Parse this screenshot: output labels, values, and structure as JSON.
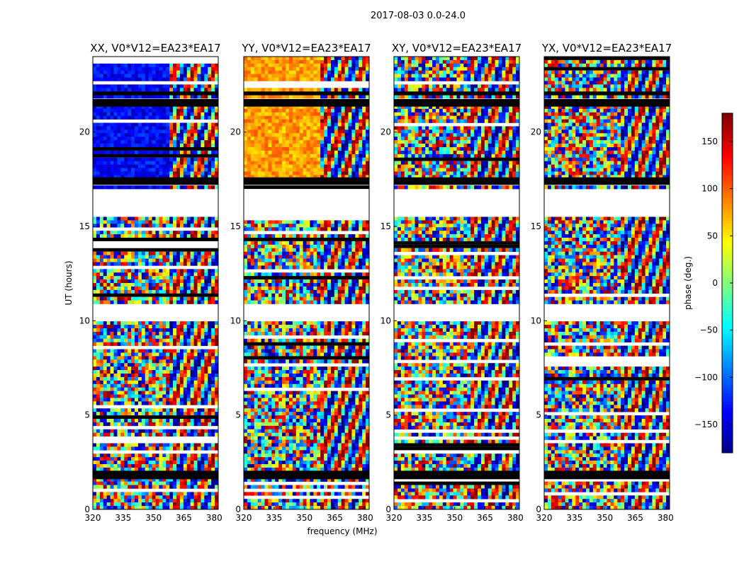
{
  "figure": {
    "suptitle": "2017-08-03 0.0-24.0"
  },
  "chart_data": {
    "type": "heatmap",
    "xlabel": "frequency (MHz)",
    "ylabel": "UT (hours)",
    "xlim": [
      320,
      382
    ],
    "ylim": [
      0,
      24
    ],
    "xticks": [
      320,
      335,
      350,
      365,
      380
    ],
    "yticks": [
      0,
      5,
      10,
      15,
      20
    ],
    "panels": [
      {
        "title": "XX, V0*V12=EA23*EA17",
        "pattern": "xx"
      },
      {
        "title": "YY, V0*V12=EA23*EA17",
        "pattern": "yy"
      },
      {
        "title": "XY, V0*V12=EA23*EA17",
        "pattern": "xy"
      },
      {
        "title": "YX, V0*V12=EA23*EA17",
        "pattern": "yx"
      }
    ],
    "flagged_ranges_hours": [
      [
        22.15,
        21.95
      ],
      [
        21.75,
        21.35
      ],
      [
        17.6,
        17.2
      ],
      [
        17.05,
        15.55
      ],
      [
        10.85,
        9.95
      ],
      [
        2.05,
        1.6
      ]
    ],
    "colorbar": {
      "label": "phase (deg.)",
      "range": [
        -180,
        180
      ],
      "ticks": [
        -150,
        -100,
        -50,
        0,
        50,
        100,
        150
      ],
      "colormap": "jet"
    }
  }
}
